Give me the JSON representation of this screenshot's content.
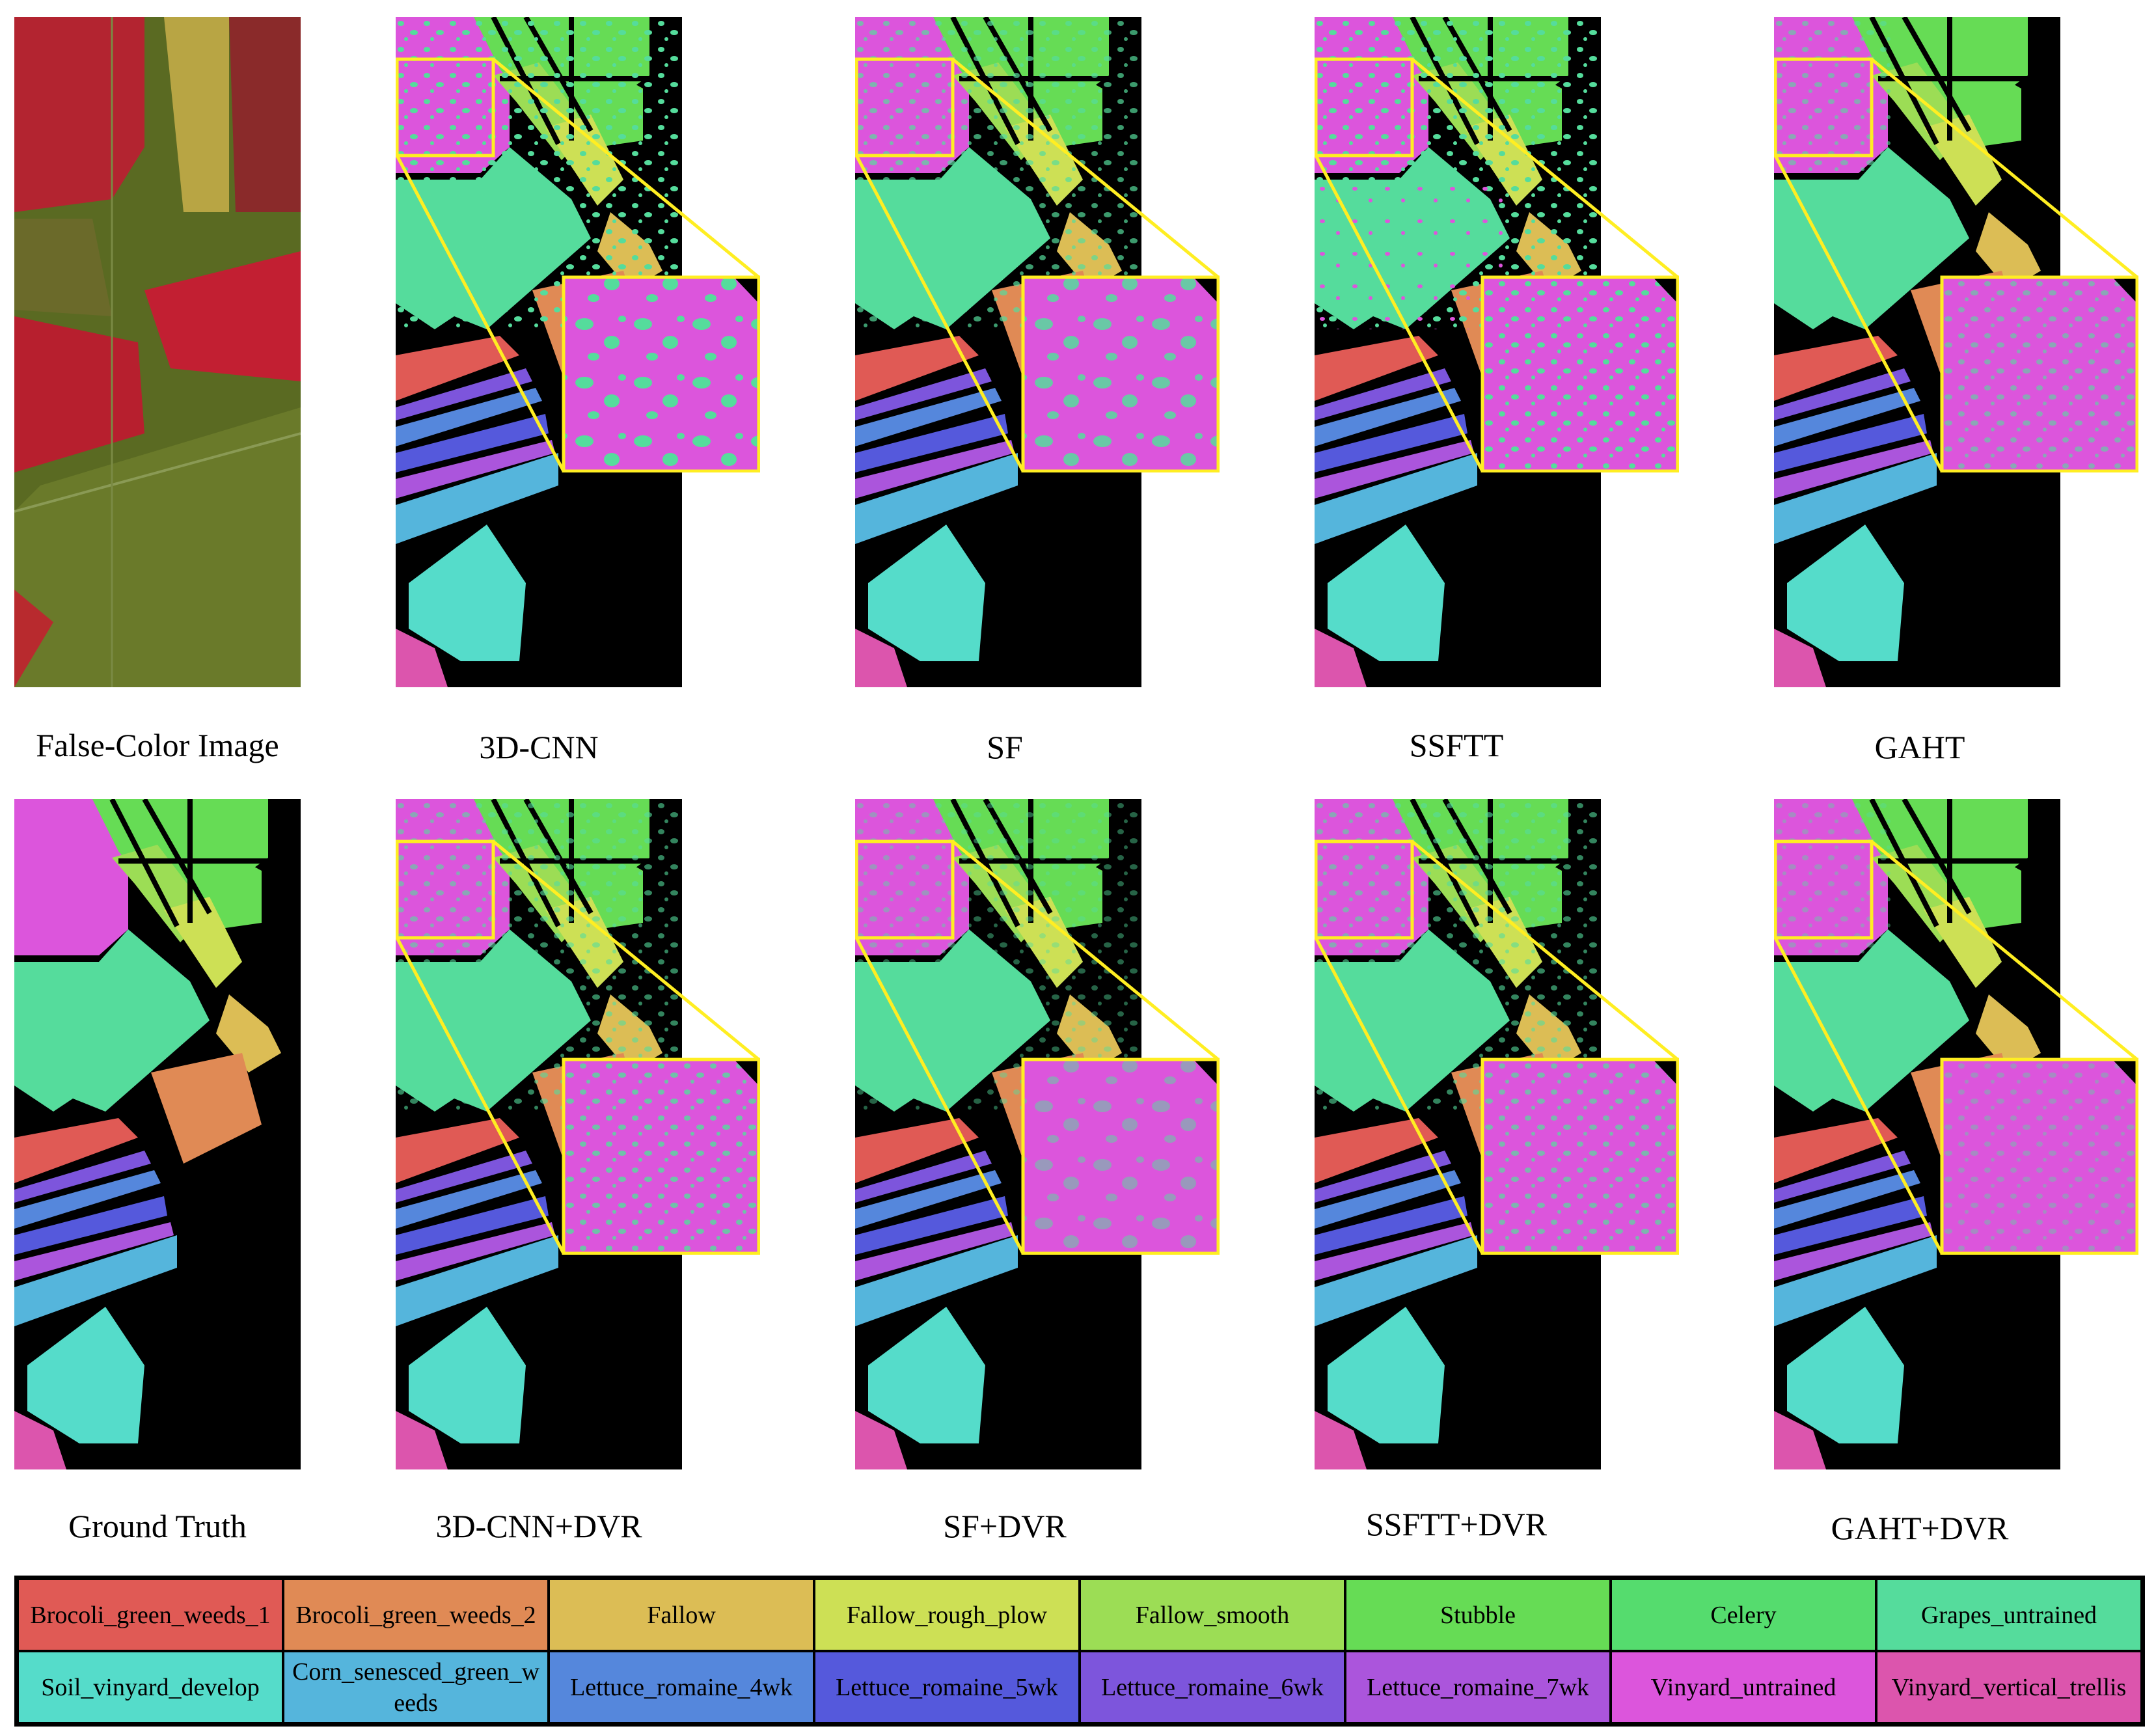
{
  "captions": {
    "false_color": "False-Color Image",
    "cnn3d": "3D-CNN",
    "sf": "SF",
    "ssftt": "SSFTT",
    "gaht": "GAHT",
    "ground_truth": "Ground Truth",
    "cnn3d_dvr": "3D-CNN+DVR",
    "sf_dvr": "SF+DVR",
    "ssftt_dvr": "SSFTT+DVR",
    "gaht_dvr": "GAHT+DVR"
  },
  "colors": {
    "highlight": "#ffee22",
    "background": "#000000"
  },
  "legend": [
    {
      "label": "Brocoli_green_weeds_1",
      "color": "#e05a55"
    },
    {
      "label": "Brocoli_green_weeds_2",
      "color": "#e08a55"
    },
    {
      "label": "Fallow",
      "color": "#dcbd55"
    },
    {
      "label": "Fallow_rough_plow",
      "color": "#cde055"
    },
    {
      "label": "Fallow_smooth",
      "color": "#9cdd55"
    },
    {
      "label": "Stubble",
      "color": "#66dc55"
    },
    {
      "label": "Celery",
      "color": "#55dc6e"
    },
    {
      "label": "Grapes_untrained",
      "color": "#55dc9c"
    },
    {
      "label": "Soil_vinyard_develop",
      "color": "#55dcca"
    },
    {
      "label": "Corn_senesced_green_weeds",
      "color": "#55b5dc"
    },
    {
      "label": "Lettuce_romaine_4wk",
      "color": "#5587dc"
    },
    {
      "label": "Lettuce_romaine_5wk",
      "color": "#5559dc"
    },
    {
      "label": "Lettuce_romaine_6wk",
      "color": "#7d55dc"
    },
    {
      "label": "Lettuce_romaine_7wk",
      "color": "#ab55dc"
    },
    {
      "label": "Vinyard_untrained",
      "color": "#dc55dc"
    },
    {
      "label": "Vinyard_vertical_trellis",
      "color": "#dc55ad"
    }
  ]
}
